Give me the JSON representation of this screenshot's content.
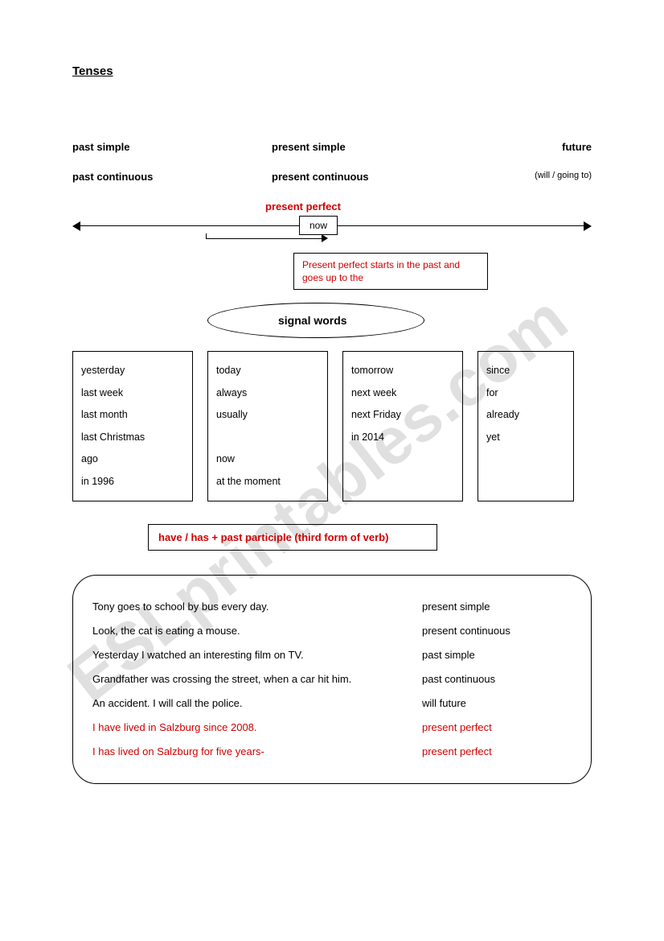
{
  "title": "Tenses",
  "headers": {
    "past_simple": "past simple",
    "present_simple": "present simple",
    "future": "future",
    "past_continuous": "past continuous",
    "present_continuous": "present continuous",
    "future_note": "(will / going to)"
  },
  "present_perfect_label": "present perfect",
  "now_label": "now",
  "pp_description": "Present perfect starts in the past and goes up to the",
  "signal_heading": "signal words",
  "signal_boxes": {
    "past": [
      "yesterday",
      "last week",
      "last month",
      "last Christmas",
      "ago",
      "in 1996"
    ],
    "present": [
      "today",
      "always",
      "usually",
      "",
      "now",
      "at the moment"
    ],
    "future_words": [
      "tomorrow",
      "next week",
      "next Friday",
      "in 2014"
    ],
    "perfect": [
      "since",
      "for",
      "already",
      "yet"
    ]
  },
  "formula": "have / has + past participle (third form of verb)",
  "examples": [
    {
      "sentence": "Tony goes to school by bus every day.",
      "tense": "present simple",
      "red": false
    },
    {
      "sentence": "Look, the cat is eating a mouse.",
      "tense": "present continuous",
      "red": false
    },
    {
      "sentence": "Yesterday I watched an interesting film on TV.",
      "tense": "past simple",
      "red": false
    },
    {
      "sentence": "Grandfather was crossing the street, when a car hit him.",
      "tense": "past continuous",
      "red": false
    },
    {
      "sentence": "An accident. I will call the police.",
      "tense": "will future",
      "red": false
    },
    {
      "sentence": "I have lived in Salzburg since 2008.",
      "tense": "present perfect",
      "red": true
    },
    {
      "sentence": "I has lived on Salzburg for five years-",
      "tense": "present perfect",
      "red": true
    }
  ],
  "watermark": "ESLprintables.com",
  "colors": {
    "red": "#d00000",
    "black": "#000000",
    "background": "#ffffff",
    "watermark": "rgba(0,0,0,0.12)"
  }
}
